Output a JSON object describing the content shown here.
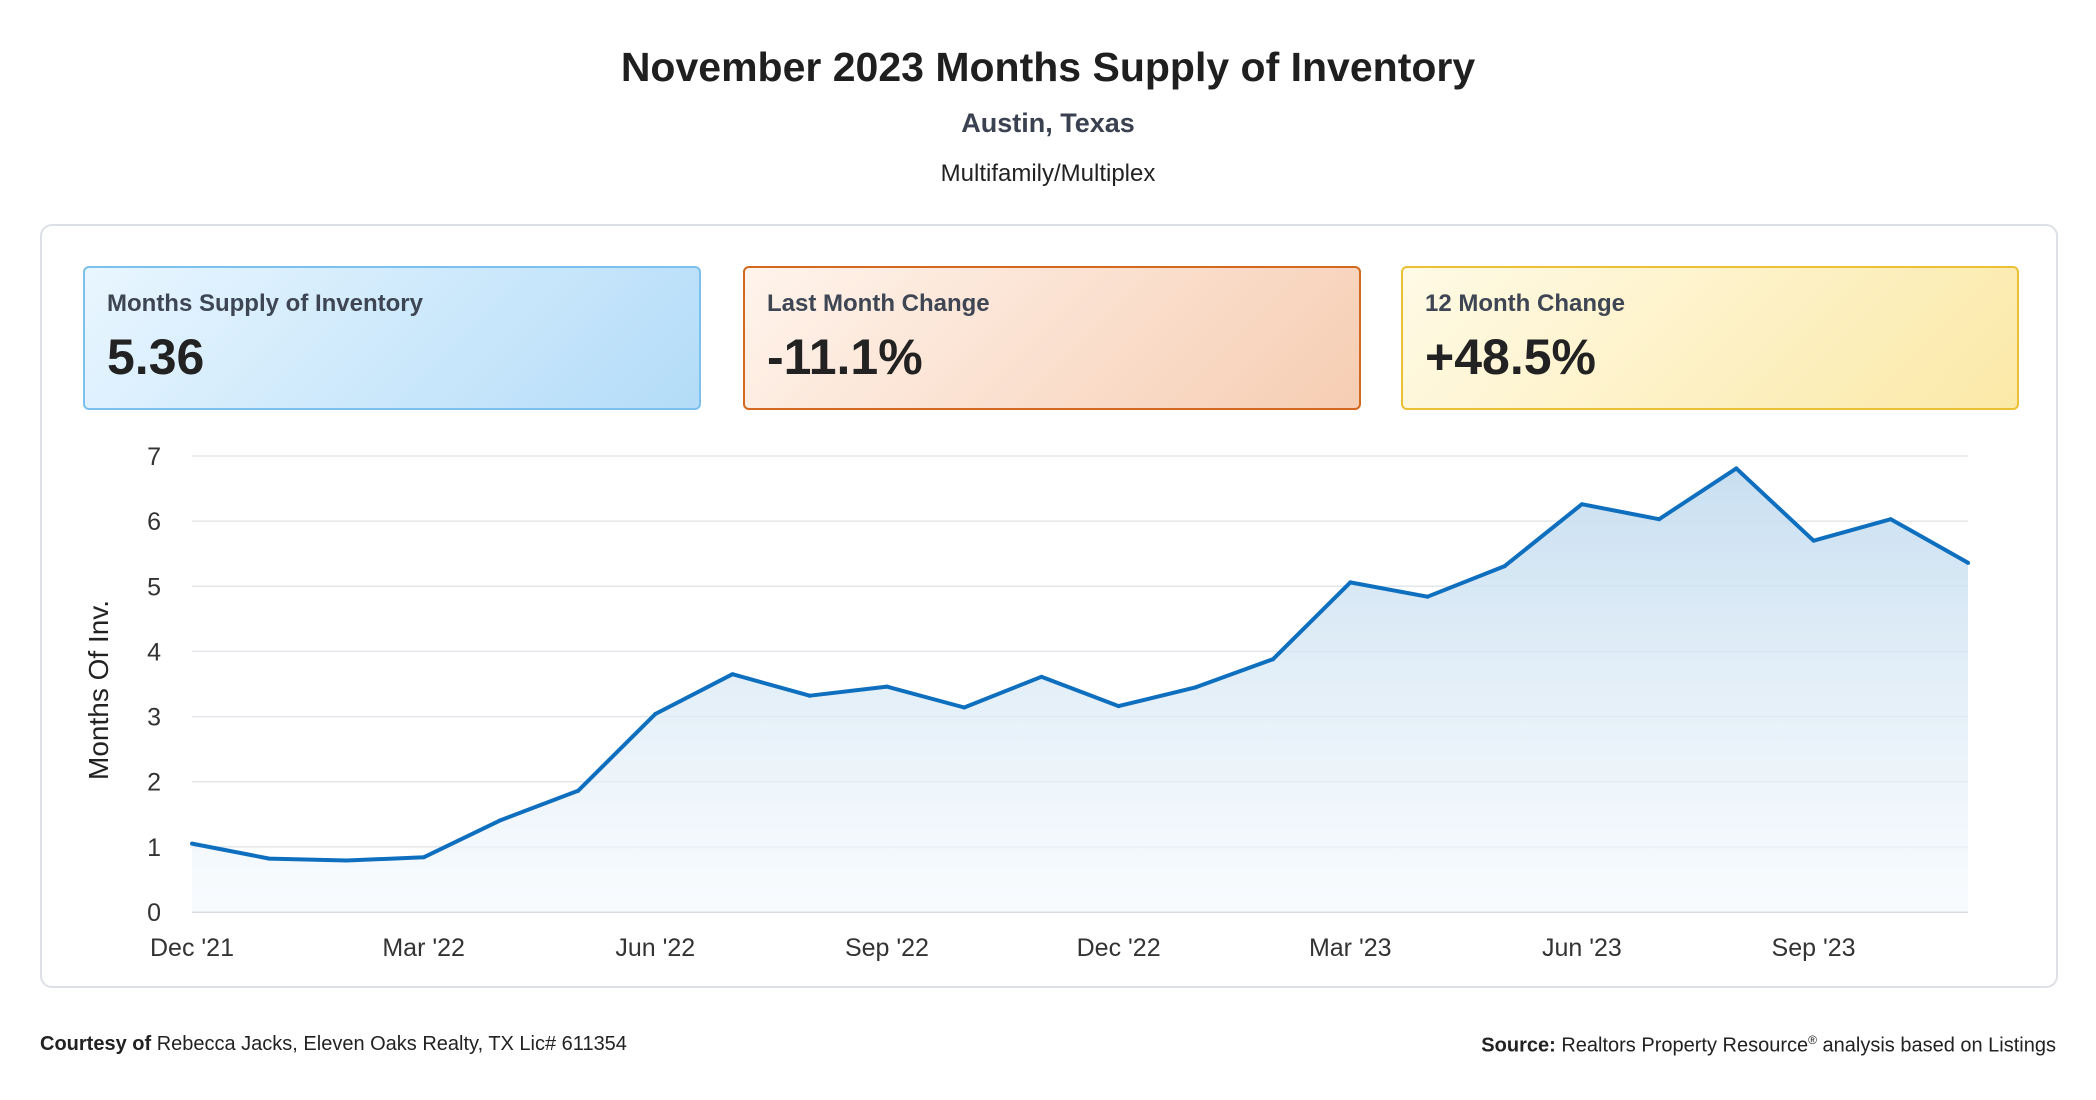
{
  "header": {
    "title": "November 2023 Months Supply of Inventory",
    "location": "Austin, Texas",
    "category": "Multifamily/Multiplex"
  },
  "cards": [
    {
      "label": "Months Supply of Inventory",
      "value": "5.36",
      "accent": "#7cc1ee"
    },
    {
      "label": "Last Month Change",
      "value": "-11.1%",
      "accent": "#d2691e"
    },
    {
      "label": "12 Month Change",
      "value": "+48.5%",
      "accent": "#ecc033"
    }
  ],
  "chart_data": {
    "type": "area",
    "ylabel": "Months Of Inv.",
    "ylim": [
      0,
      7
    ],
    "yticks": [
      0,
      1,
      2,
      3,
      4,
      5,
      6,
      7
    ],
    "x": [
      "Dec '21",
      "Jan '22",
      "Feb '22",
      "Mar '22",
      "Apr '22",
      "May '22",
      "Jun '22",
      "Jul '22",
      "Aug '22",
      "Sep '22",
      "Oct '22",
      "Nov '22",
      "Dec '22",
      "Jan '23",
      "Feb '23",
      "Mar '23",
      "Apr '23",
      "May '23",
      "Jun '23",
      "Jul '23",
      "Aug '23",
      "Sep '23",
      "Oct '23",
      "Nov '23"
    ],
    "xticks": [
      "Dec '21",
      "Mar '22",
      "Jun '22",
      "Sep '22",
      "Dec '22",
      "Mar '23",
      "Jun '23",
      "Sep '23"
    ],
    "values": [
      1.05,
      0.82,
      0.79,
      0.84,
      1.41,
      1.86,
      3.04,
      3.65,
      3.32,
      3.46,
      3.14,
      3.61,
      3.16,
      3.45,
      3.88,
      5.06,
      4.84,
      5.31,
      6.26,
      6.03,
      6.81,
      5.7,
      6.03,
      5.36
    ],
    "grid": true,
    "line_color": "#0f6fbf"
  },
  "footer": {
    "courtesy_label": "Courtesy of",
    "courtesy_text": "Rebecca Jacks, Eleven Oaks Realty, TX Lic# 611354",
    "source_label": "Source:",
    "source_text": "Realtors Property Resource",
    "source_mark": "®",
    "source_suffix": "analysis based on Listings"
  }
}
